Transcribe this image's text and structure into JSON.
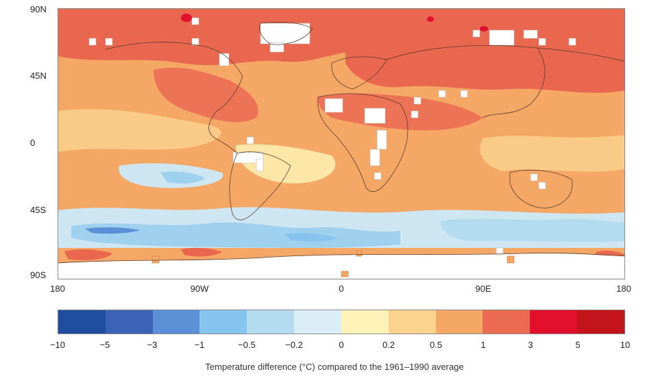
{
  "map": {
    "lat_labels": [
      "90N",
      "45N",
      "0",
      "45S",
      "90S"
    ],
    "lon_labels": [
      "180",
      "90W",
      "0",
      "90E",
      "180"
    ]
  },
  "legend": {
    "tick_labels": [
      "−10",
      "−5",
      "−3",
      "−1",
      "−0.5",
      "−0.2",
      "0",
      "0.2",
      "0.5",
      "1",
      "3",
      "5",
      "10"
    ],
    "colors": [
      "#1f4e9e",
      "#3a63b5",
      "#5b8fd6",
      "#86c3ef",
      "#b3dcf1",
      "#dbeef5",
      "#fff3b8",
      "#fbd38c",
      "#f5a766",
      "#ea6a52",
      "#e2102c",
      "#c4141b"
    ],
    "caption": "Temperature difference (°C) compared to the 1961–1990 average"
  },
  "palette": {
    "strong_warm": "#e9664f",
    "mid_warm": "#f3a064",
    "light_warm": "#f9cb86",
    "neutral": "#fde7a8",
    "light_cool": "#cde6f2",
    "mid_cool": "#9fd0ee",
    "strong_cool": "#5b8fd6",
    "no_data": "#ffffff",
    "land_outline": "#5a3a2a"
  }
}
